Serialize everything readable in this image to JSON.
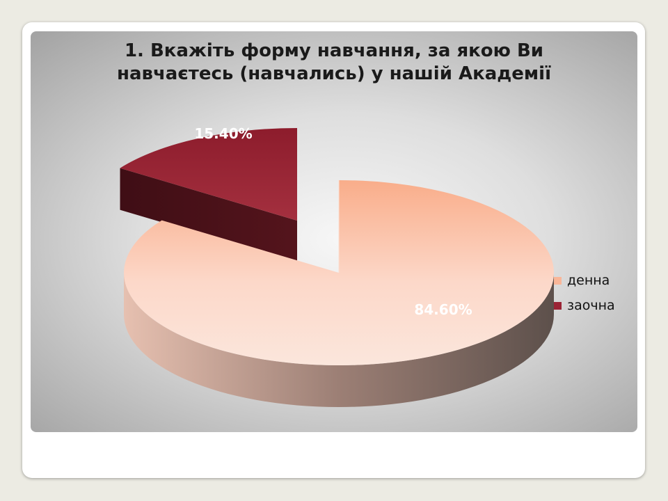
{
  "chart_data": {
    "type": "pie",
    "title": "1. Вкажіть форму навчання, за якою Ви навчаєтесь (навчались) у нашій Академії",
    "categories": [
      "денна",
      "заочна"
    ],
    "values": [
      84.6,
      15.4
    ],
    "data_labels": [
      "84.60%",
      "15.40%"
    ],
    "colors": [
      "#f9b698",
      "#9b2335"
    ],
    "legend_position": "right",
    "exploded": "заочна",
    "style": "3d"
  }
}
